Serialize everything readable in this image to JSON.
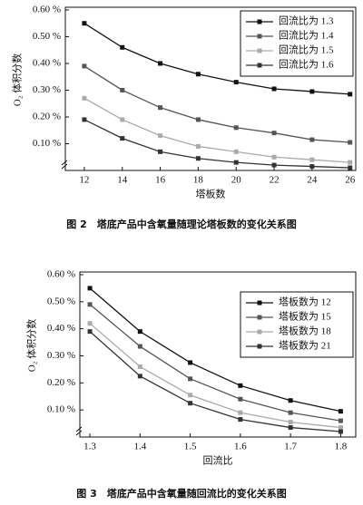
{
  "chart_data": [
    {
      "type": "line",
      "x": [
        12,
        14,
        16,
        18,
        20,
        22,
        24,
        26
      ],
      "series": [
        {
          "name": "回流比为 1.3",
          "color": "#111111",
          "values": [
            0.55,
            0.46,
            0.4,
            0.36,
            0.33,
            0.305,
            0.295,
            0.285
          ]
        },
        {
          "name": "回流比为 1.4",
          "color": "#555555",
          "values": [
            0.39,
            0.3,
            0.235,
            0.19,
            0.16,
            0.14,
            0.115,
            0.105
          ]
        },
        {
          "name": "回流比为 1.5",
          "color": "#aaaaaa",
          "values": [
            0.27,
            0.19,
            0.13,
            0.09,
            0.07,
            0.05,
            0.04,
            0.03
          ]
        },
        {
          "name": "回流比为 1.6",
          "color": "#333333",
          "values": [
            0.19,
            0.12,
            0.07,
            0.045,
            0.03,
            0.02,
            0.015,
            0.01
          ]
        }
      ],
      "xlim": [
        11,
        26.3
      ],
      "ylim": [
        0,
        0.61
      ],
      "xticks": [
        12,
        14,
        16,
        18,
        20,
        22,
        24,
        26
      ],
      "yticks": [
        {
          "value": 0.1,
          "label": "0.10 %"
        },
        {
          "value": 0.2,
          "label": "0.20 %"
        },
        {
          "value": 0.3,
          "label": "0.30 %"
        },
        {
          "value": 0.4,
          "label": "0.40 %"
        },
        {
          "value": 0.5,
          "label": "0.50 %"
        },
        {
          "value": 0.6,
          "label": "0.60 %"
        }
      ],
      "xlabel": "塔板数",
      "ylabel": "O₂ 体积分数",
      "legend": "upper right",
      "caption": "图 2　塔底产品中含氧量随理论塔板数的变化关系图"
    },
    {
      "type": "line",
      "x": [
        1.3,
        1.4,
        1.5,
        1.6,
        1.7,
        1.8
      ],
      "series": [
        {
          "name": "塔板数为 12",
          "color": "#111111",
          "values": [
            0.55,
            0.39,
            0.275,
            0.19,
            0.135,
            0.095
          ]
        },
        {
          "name": "塔板数为 15",
          "color": "#555555",
          "values": [
            0.49,
            0.335,
            0.215,
            0.14,
            0.09,
            0.06
          ]
        },
        {
          "name": "塔板数为 18",
          "color": "#aaaaaa",
          "values": [
            0.42,
            0.26,
            0.155,
            0.09,
            0.055,
            0.035
          ]
        },
        {
          "name": "塔板数为 21",
          "color": "#333333",
          "values": [
            0.39,
            0.225,
            0.125,
            0.065,
            0.035,
            0.02
          ]
        }
      ],
      "xlim": [
        1.28,
        1.83
      ],
      "ylim": [
        0,
        0.61
      ],
      "xticks": [
        1.3,
        1.4,
        1.5,
        1.6,
        1.7,
        1.8
      ],
      "yticks": [
        {
          "value": 0.1,
          "label": "0.10 %"
        },
        {
          "value": 0.2,
          "label": "0.20 %"
        },
        {
          "value": 0.3,
          "label": "0.30 %"
        },
        {
          "value": 0.4,
          "label": "0.40 %"
        },
        {
          "value": 0.5,
          "label": "0.50 %"
        },
        {
          "value": 0.6,
          "label": "0.60 %"
        }
      ],
      "xlabel": "回流比",
      "ylabel": "O₂ 体积分数",
      "legend": "upper right",
      "caption": "图 3　塔底产品中含氧量随回流比的变化关系图"
    }
  ]
}
